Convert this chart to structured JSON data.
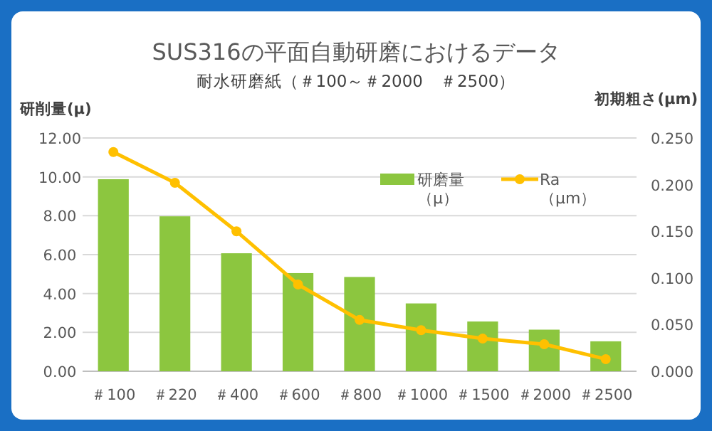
{
  "chart_data": {
    "type": "bar",
    "title": "SUS316の平面自動研磨におけるデータ",
    "subtitle": "耐水研磨紙（＃100～＃2000　＃2500）",
    "ylabel": "研削量(μ)",
    "y2label": "初期粗さ(μm)",
    "categories": [
      "＃100",
      "＃220",
      "＃400",
      "＃600",
      "＃800",
      "＃1000",
      "＃1500",
      "＃2000",
      "＃2500"
    ],
    "series": [
      {
        "name": "研磨量（μ）",
        "color": "#8cc63f",
        "values": [
          9.88,
          7.97,
          6.07,
          5.05,
          4.85,
          3.49,
          2.56,
          2.14,
          1.54
        ]
      },
      {
        "name": "Ra（μm）",
        "type": "line",
        "axis": "y2",
        "color": "#ffc000",
        "marker": "circle",
        "values": [
          0.235,
          0.202,
          0.15,
          0.093,
          0.055,
          0.044,
          0.035,
          0.029,
          0.013
        ]
      }
    ],
    "ylim": [
      0,
      12
    ],
    "yticks": [
      {
        "value": 0,
        "label": "0.00"
      },
      {
        "value": 2,
        "label": "2.00"
      },
      {
        "value": 4,
        "label": "4.00"
      },
      {
        "value": 6,
        "label": "6.00"
      },
      {
        "value": 8,
        "label": "8.00"
      },
      {
        "value": 10,
        "label": "10.00"
      },
      {
        "value": 12,
        "label": "12.00"
      }
    ],
    "y2lim": [
      0,
      0.25
    ],
    "y2ticks": [
      {
        "value": 0,
        "label": "0.000"
      },
      {
        "value": 0.05,
        "label": "0.050"
      },
      {
        "value": 0.1,
        "label": "0.100"
      },
      {
        "value": 0.15,
        "label": "0.150"
      },
      {
        "value": 0.2,
        "label": "0.200"
      },
      {
        "value": 0.25,
        "label": "0.250"
      }
    ],
    "grid": "y",
    "legend": "top right"
  }
}
